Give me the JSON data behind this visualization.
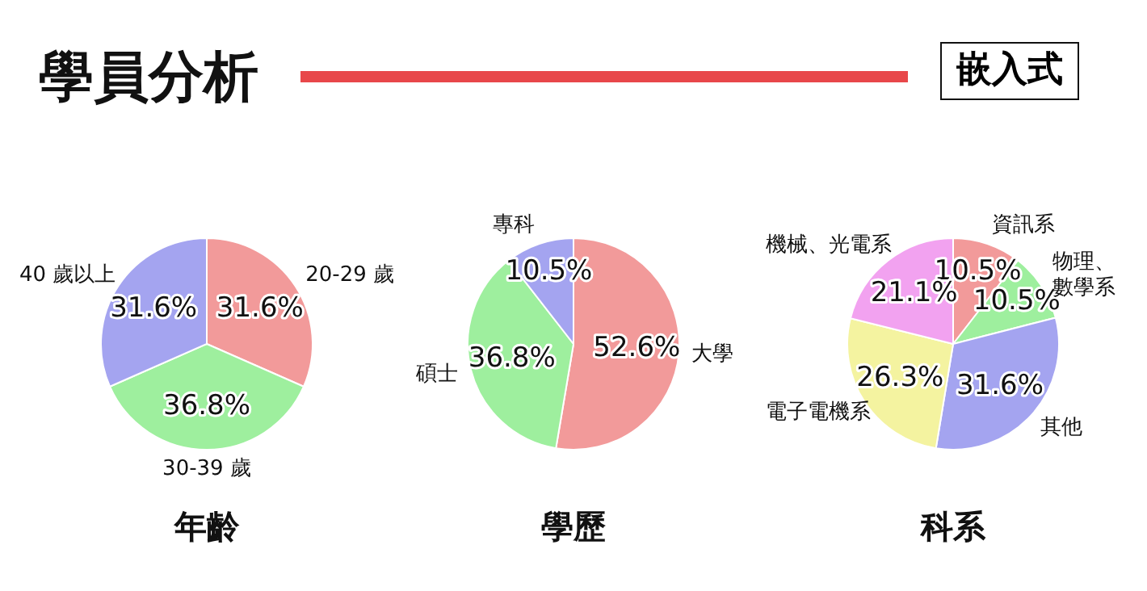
{
  "chart_data": [
    {
      "type": "other",
      "title": "學員分析",
      "annotations": [
        "嵌入式"
      ]
    },
    {
      "type": "pie",
      "title": "年齡",
      "categories": [
        "20-29 歲",
        "30-39 歲",
        "40 歲以上"
      ],
      "values": [
        31.6,
        36.8,
        31.6
      ],
      "colors": [
        "#f29a9a",
        "#9eef9e",
        "#a4a4f0"
      ],
      "value_labels": [
        "31.6%",
        "36.8%",
        "31.6%"
      ]
    },
    {
      "type": "pie",
      "title": "學歷",
      "categories": [
        "大學",
        "碩士",
        "專科"
      ],
      "values": [
        52.6,
        36.8,
        10.5
      ],
      "colors": [
        "#f29a9a",
        "#9eef9e",
        "#a4a4f0"
      ],
      "value_labels": [
        "52.6%",
        "36.8%",
        "10.5%"
      ]
    },
    {
      "type": "pie",
      "title": "科系",
      "categories": [
        "資訊系",
        "物理、數學系",
        "其他",
        "電子電機系",
        "機械、光電系"
      ],
      "values": [
        10.5,
        10.5,
        31.6,
        26.3,
        21.1
      ],
      "colors": [
        "#f29a9a",
        "#9eef9e",
        "#a4a4f0",
        "#f4f3a0",
        "#f2a2f0"
      ],
      "value_labels": [
        "10.5%",
        "10.5%",
        "31.6%",
        "26.3%",
        "21.1%"
      ]
    }
  ]
}
